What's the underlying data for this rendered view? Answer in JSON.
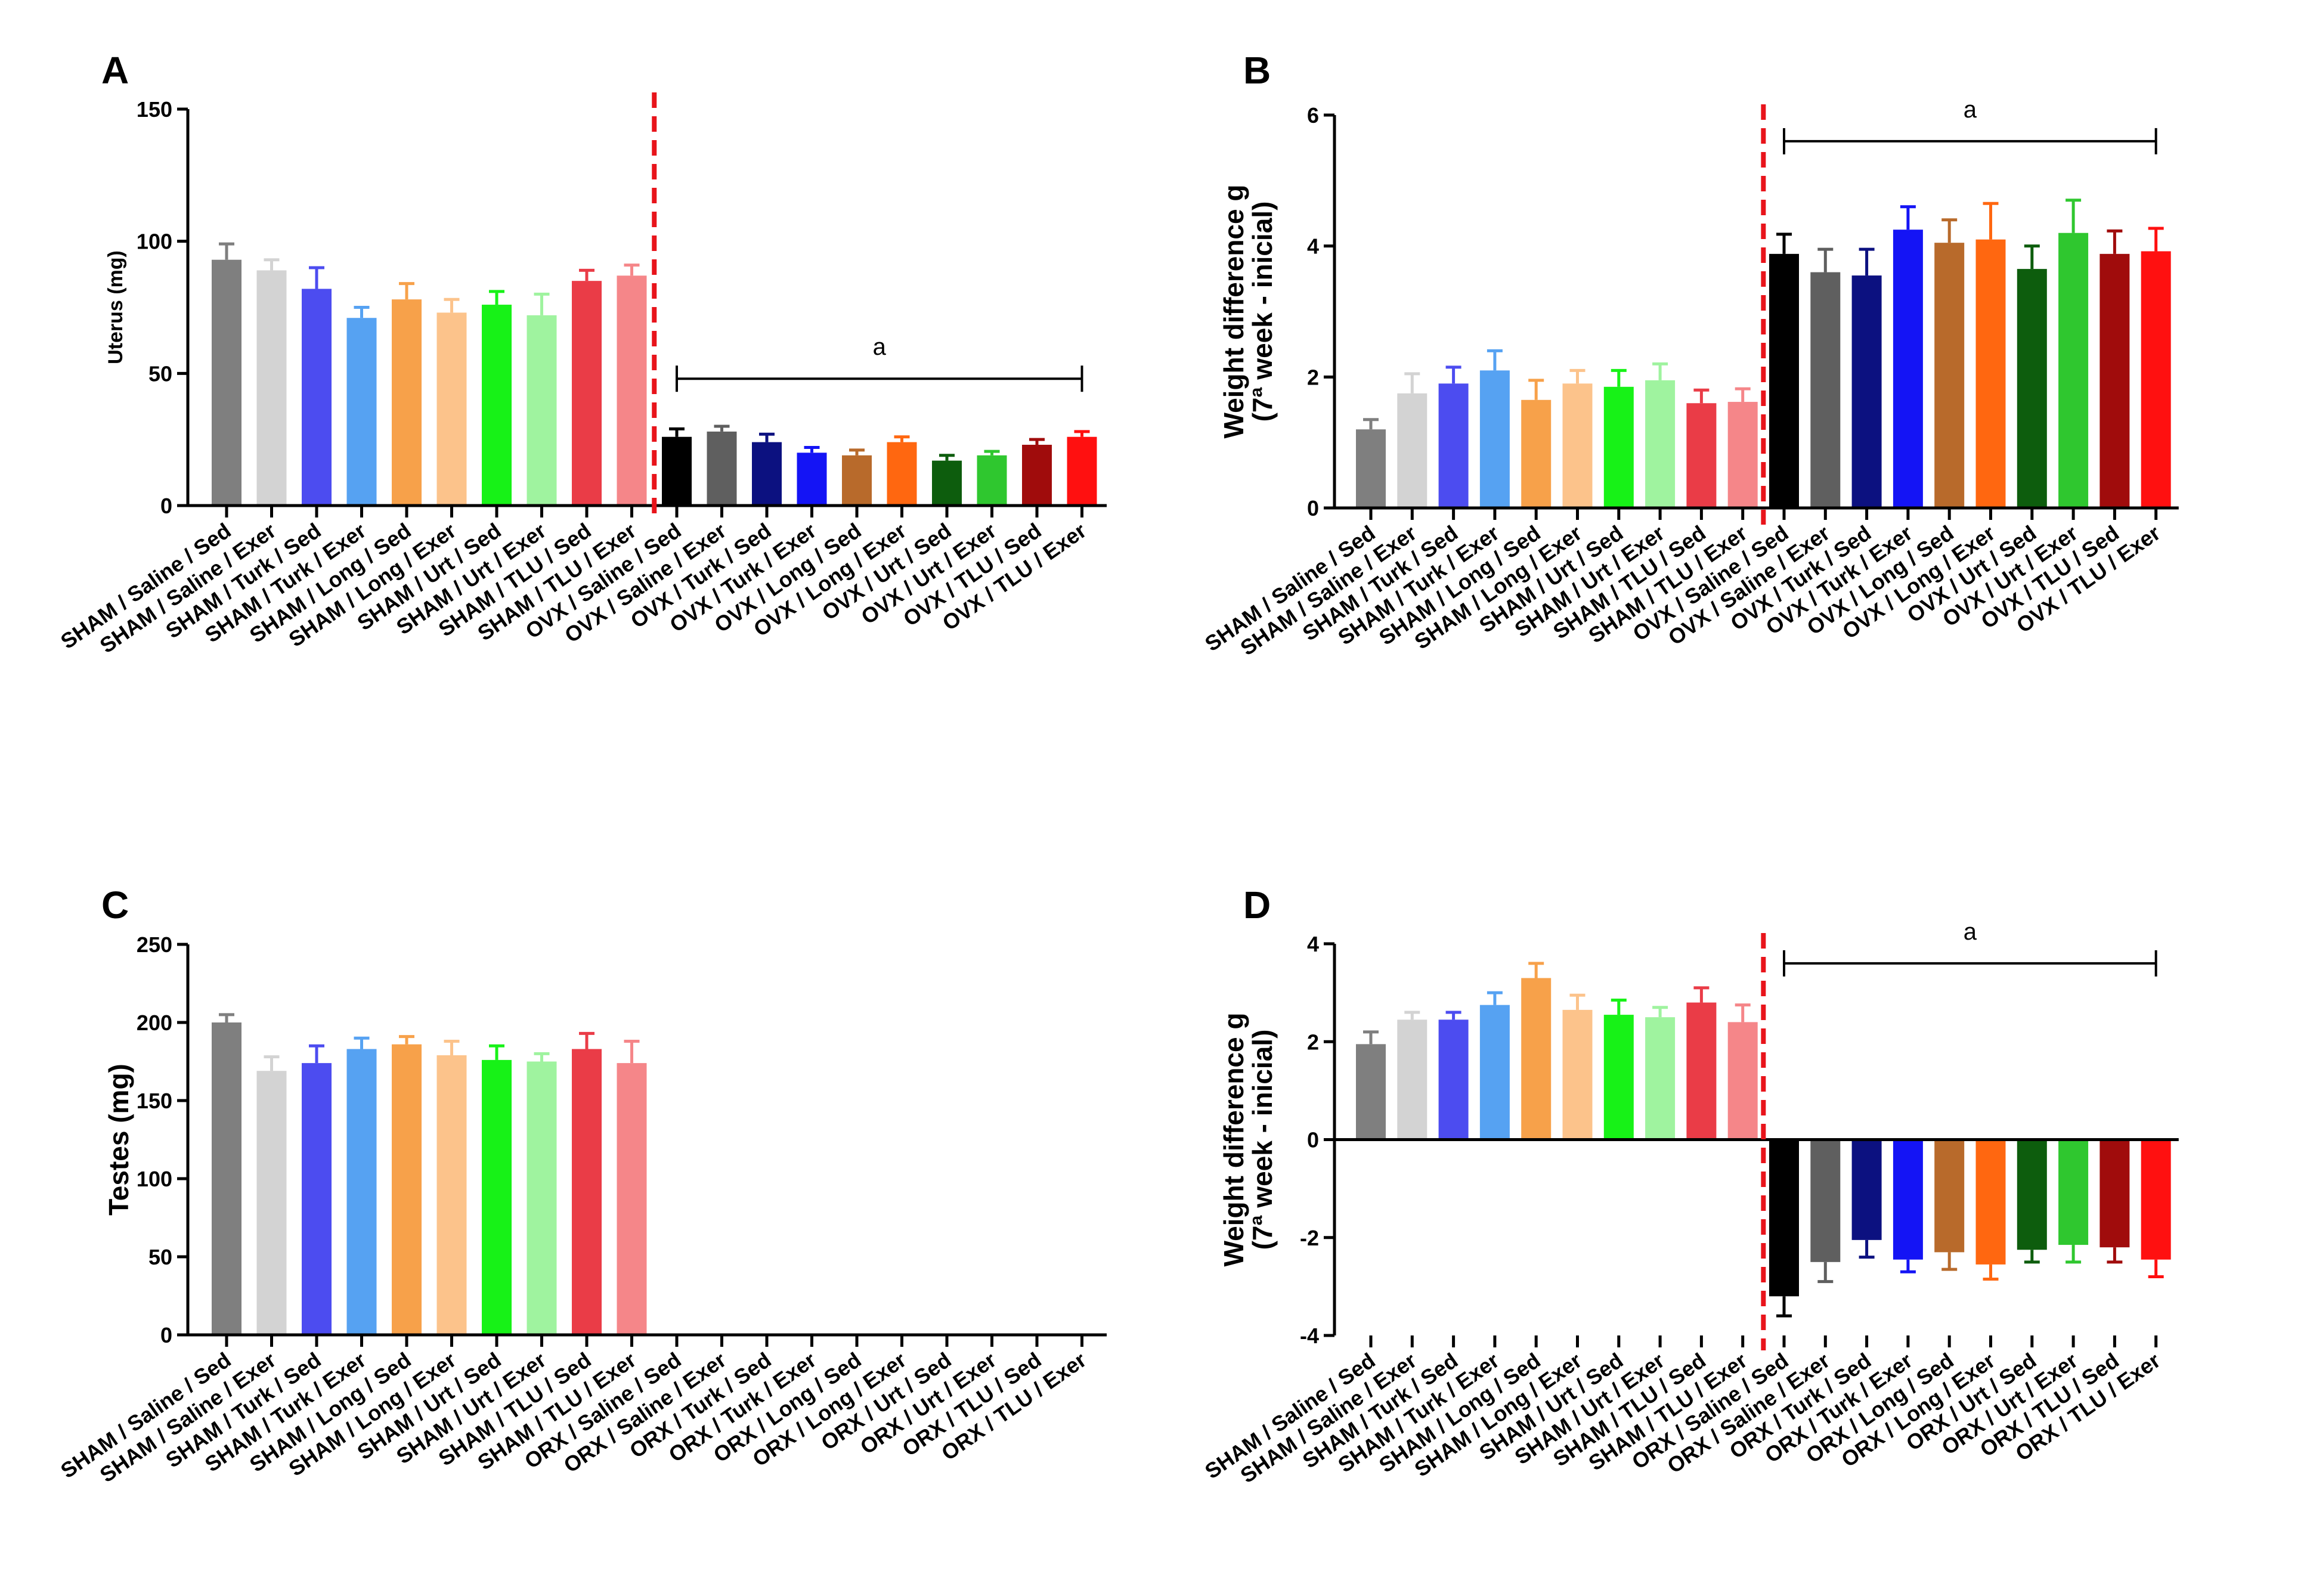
{
  "figure": {
    "background": "#ffffff"
  },
  "colors": [
    "#7f7f7f",
    "#d3d3d3",
    "#4c4cf0",
    "#56a2f2",
    "#f7a14a",
    "#fcc38b",
    "#17f217",
    "#9ff39f",
    "#ea3c47",
    "#f58689",
    "#000000",
    "#5f5f5f",
    "#0c1180",
    "#1414f5",
    "#b86a2b",
    "#ff6710",
    "#0d5d0d",
    "#2fc72f",
    "#a00c0c",
    "#ff1010"
  ],
  "chart_data": [
    {
      "panel": "A",
      "type": "bar",
      "title": "",
      "xlabel": "",
      "ylabel": "Uterus (mg)",
      "ylim": [
        0,
        150
      ],
      "yticks": [
        0,
        50,
        100,
        150
      ],
      "categories": [
        "SHAM / Saline / Sed",
        "SHAM / Saline / Exer",
        "SHAM / Turk / Sed",
        "SHAM / Turk / Exer",
        "SHAM / Long / Sed",
        "SHAM / Long / Exer",
        "SHAM / Urt / Sed",
        "SHAM / Urt / Exer",
        "SHAM / TLU / Sed",
        "SHAM / TLU / Exer",
        "OVX / Saline / Sed",
        "OVX / Saline / Exer",
        "OVX / Turk / Sed",
        "OVX / Turk / Exer",
        "OVX / Long / Sed",
        "OVX / Long / Exer",
        "OVX / Urt / Sed",
        "OVX / Urt / Exer",
        "OVX / TLU / Sed",
        "OVX / TLU / Exer"
      ],
      "values": [
        93,
        89,
        82,
        71,
        78,
        73,
        76,
        72,
        85,
        87,
        26,
        28,
        24,
        20,
        19,
        24,
        17,
        19,
        23,
        26
      ],
      "errors": [
        6,
        4,
        8,
        4,
        6,
        5,
        5,
        8,
        4,
        4,
        3,
        2,
        3,
        2,
        2,
        2,
        2,
        1.5,
        2,
        2
      ],
      "significance": {
        "label": "a",
        "from_index": 10,
        "to_index": 19,
        "y_value": 48
      },
      "divider_after_index": 9,
      "err_color_light": false
    },
    {
      "panel": "B",
      "type": "bar",
      "title": "",
      "xlabel": "",
      "ylabel": "Weight difference g",
      "ylabel_line2": "(7ª week - inicial)",
      "ylim": [
        0,
        6
      ],
      "yticks": [
        0,
        2,
        4,
        6
      ],
      "categories": [
        "SHAM / Saline / Sed",
        "SHAM / Saline / Exer",
        "SHAM / Turk / Sed",
        "SHAM / Turk / Exer",
        "SHAM / Long / Sed",
        "SHAM / Long / Exer",
        "SHAM / Urt / Sed",
        "SHAM / Urt / Exer",
        "SHAM / TLU / Sed",
        "SHAM / TLU / Exer",
        "OVX / Saline / Sed",
        "OVX / Saline / Exer",
        "OVX / Turk / Sed",
        "OVX / Turk / Exer",
        "OVX / Long / Sed",
        "OVX / Long / Exer",
        "OVX / Urt / Sed",
        "OVX / Urt / Exer",
        "OVX / TLU / Sed",
        "OVX / TLU / Exer"
      ],
      "values": [
        1.2,
        1.75,
        1.9,
        2.1,
        1.65,
        1.9,
        1.85,
        1.95,
        1.6,
        1.62,
        3.88,
        3.6,
        3.55,
        4.25,
        4.05,
        4.1,
        3.65,
        4.2,
        3.88,
        3.92
      ],
      "errors": [
        0.15,
        0.3,
        0.25,
        0.3,
        0.3,
        0.2,
        0.25,
        0.25,
        0.2,
        0.2,
        0.3,
        0.35,
        0.4,
        0.35,
        0.35,
        0.55,
        0.35,
        0.5,
        0.35,
        0.35
      ],
      "significance": {
        "label": "a",
        "from_index": 10,
        "to_index": 19,
        "y_value": 5.6
      },
      "divider_after_index": 9
    },
    {
      "panel": "C",
      "type": "bar",
      "title": "",
      "xlabel": "",
      "ylabel": "Testes (mg)",
      "ylim": [
        0,
        250
      ],
      "yticks": [
        0,
        50,
        100,
        150,
        200,
        250
      ],
      "categories": [
        "SHAM / Saline / Sed",
        "SHAM / Saline / Exer",
        "SHAM / Turk / Sed",
        "SHAM / Turk / Exer",
        "SHAM / Long / Sed",
        "SHAM / Long / Exer",
        "SHAM / Urt / Sed",
        "SHAM / Urt / Exer",
        "SHAM / TLU / Sed",
        "SHAM / TLU / Exer",
        "ORX / Saline / Sed",
        "ORX / Saline / Exer",
        "ORX / Turk / Sed",
        "ORX / Turk / Exer",
        "ORX / Long / Sed",
        "ORX / Long / Exer",
        "ORX / Urt / Sed",
        "ORX / Urt / Exer",
        "ORX / TLU / Sed",
        "ORX / TLU / Exer"
      ],
      "values": [
        200,
        169,
        174,
        183,
        186,
        179,
        176,
        175,
        183,
        174,
        null,
        null,
        null,
        null,
        null,
        null,
        null,
        null,
        null,
        null
      ],
      "errors": [
        5,
        9,
        11,
        7,
        5,
        9,
        9,
        5,
        10,
        14,
        null,
        null,
        null,
        null,
        null,
        null,
        null,
        null,
        null,
        null
      ]
    },
    {
      "panel": "D",
      "type": "bar",
      "title": "",
      "xlabel": "",
      "ylabel": "Weight difference g",
      "ylabel_line2": "(7ª week - inicial)",
      "ylim": [
        -4,
        4
      ],
      "yticks": [
        -4,
        -2,
        0,
        2,
        4
      ],
      "categories": [
        "SHAM / Saline / Sed",
        "SHAM / Saline / Exer",
        "SHAM / Turk / Sed",
        "SHAM / Turk / Exer",
        "SHAM / Long / Sed",
        "SHAM / Long / Exer",
        "SHAM / Urt / Sed",
        "SHAM / Urt / Exer",
        "SHAM / TLU / Sed",
        "SHAM / TLU / Exer",
        "ORX / Saline / Sed",
        "ORX / Saline / Exer",
        "ORX / Turk / Sed",
        "ORX / Turk / Exer",
        "ORX / Long / Sed",
        "ORX / Long / Exer",
        "ORX / Urt / Sed",
        "ORX / Urt / Exer",
        "ORX / TLU / Sed",
        "ORX / TLU / Exer"
      ],
      "values": [
        1.95,
        2.45,
        2.45,
        2.75,
        3.3,
        2.65,
        2.55,
        2.5,
        2.8,
        2.4,
        -3.2,
        -2.5,
        -2.05,
        -2.45,
        -2.3,
        -2.55,
        -2.25,
        -2.15,
        -2.2,
        -2.45
      ],
      "errors": [
        0.25,
        0.15,
        0.15,
        0.25,
        0.3,
        0.3,
        0.3,
        0.2,
        0.3,
        0.35,
        0.4,
        0.4,
        0.35,
        0.25,
        0.35,
        0.3,
        0.25,
        0.35,
        0.3,
        0.35
      ],
      "significance": {
        "label": "a",
        "from_index": 10,
        "to_index": 19,
        "y_value": 3.6
      },
      "divider_after_index": 9
    }
  ]
}
